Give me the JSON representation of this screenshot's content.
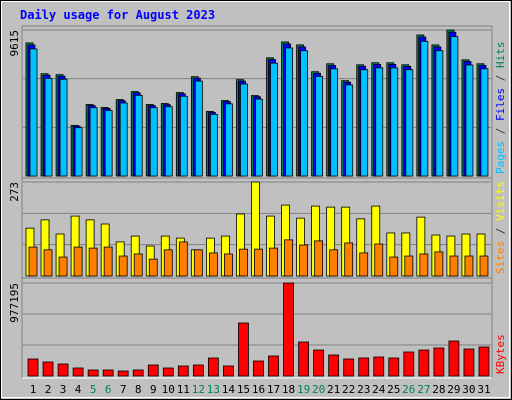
{
  "title": "Daily usage for August 2023",
  "legend_separator": "/",
  "categories": [
    "1",
    "2",
    "3",
    "4",
    "5",
    "6",
    "7",
    "8",
    "9",
    "10",
    "11",
    "12",
    "13",
    "14",
    "15",
    "16",
    "17",
    "18",
    "19",
    "20",
    "21",
    "22",
    "23",
    "24",
    "25",
    "26",
    "27",
    "28",
    "29",
    "30",
    "31"
  ],
  "category_colors": [
    "#000000",
    "#000000",
    "#000000",
    "#000000",
    "#00805c",
    "#00805c",
    "#000000",
    "#000000",
    "#000000",
    "#000000",
    "#000000",
    "#00805c",
    "#00805c",
    "#000000",
    "#000000",
    "#000000",
    "#000000",
    "#000000",
    "#00805c",
    "#00805c",
    "#000000",
    "#000000",
    "#000000",
    "#000000",
    "#000000",
    "#00805c",
    "#00805c",
    "#000000",
    "#000000",
    "#000000",
    "#000000"
  ],
  "chart_data": [
    {
      "type": "bar",
      "ylim": [
        0,
        9615
      ],
      "yticks": [
        9615
      ],
      "series": [
        {
          "name": "Hits",
          "color": "#00805c",
          "values": [
            8765,
            6737,
            6672,
            3336,
            4710,
            4513,
            5037,
            5560,
            4710,
            4775,
            5494,
            6541,
            4252,
            4971,
            6345,
            5298,
            7784,
            8830,
            8634,
            6868,
            7391,
            6279,
            7326,
            7457,
            7457,
            7326,
            9288,
            8634,
            9615,
            7653,
            7391
          ]
        },
        {
          "name": "Files",
          "color": "#0000ff",
          "values": [
            8630,
            6640,
            6570,
            3290,
            4640,
            4450,
            4960,
            5480,
            4640,
            4700,
            5410,
            6440,
            4190,
            4900,
            6250,
            5220,
            7670,
            8700,
            8500,
            6760,
            7280,
            6180,
            7220,
            7350,
            7350,
            7220,
            9150,
            8500,
            9470,
            7540,
            7280
          ]
        },
        {
          "name": "Pages",
          "color": "#00c0ff",
          "values": [
            8370,
            6430,
            6370,
            3180,
            4500,
            4310,
            4810,
            5310,
            4500,
            4560,
            5250,
            6250,
            4060,
            4750,
            6060,
            5060,
            7430,
            8430,
            8250,
            6560,
            7060,
            6000,
            7000,
            7120,
            7120,
            7000,
            8870,
            8250,
            9180,
            7310,
            7060
          ]
        }
      ]
    },
    {
      "type": "bar",
      "ylim": [
        0,
        273
      ],
      "yticks": [
        273
      ],
      "series": [
        {
          "name": "Visits",
          "color": "#ffff00",
          "values": [
            139,
            163,
            122,
            174,
            163,
            151,
            99,
            116,
            87,
            116,
            110,
            76,
            110,
            116,
            180,
            273,
            174,
            206,
            168,
            203,
            200,
            200,
            166,
            203,
            125,
            125,
            171,
            119,
            116,
            122,
            122
          ]
        },
        {
          "name": "Sites",
          "color": "#ff8000",
          "values": [
            84,
            76,
            55,
            84,
            81,
            84,
            58,
            64,
            49,
            76,
            99,
            76,
            67,
            64,
            78,
            78,
            81,
            105,
            90,
            102,
            76,
            96,
            67,
            93,
            55,
            58,
            64,
            70,
            58,
            58,
            58
          ]
        }
      ]
    },
    {
      "type": "bar",
      "ylim": [
        0,
        977195
      ],
      "yticks": [
        977195
      ],
      "series": [
        {
          "name": "KBytes",
          "color": "#ff0000",
          "values": [
            178619,
            147098,
            126084,
            84056,
            63042,
            63042,
            52535,
            63042,
            115577,
            84056,
            105070,
            115577,
            189126,
            105070,
            556871,
            157605,
            210140,
            977195,
            357238,
            273182,
            220647,
            178619,
            189126,
            199633,
            189126,
            252168,
            273182,
            294196,
            367745,
            283689,
            304703
          ]
        }
      ]
    }
  ]
}
